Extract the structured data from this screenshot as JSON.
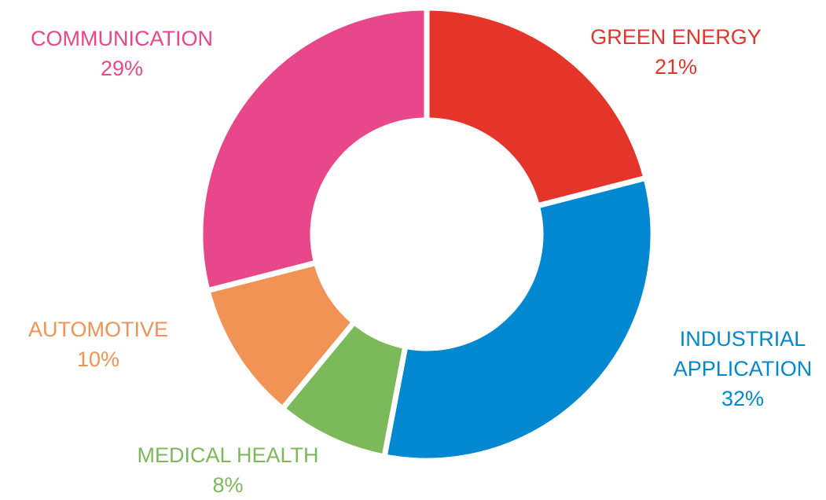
{
  "chart_data": {
    "type": "donut",
    "categories": [
      "GREEN ENERGY",
      "INDUSTRIAL APPLICATION",
      "MEDICAL HEALTH",
      "AUTOMOTIVE",
      "COMMUNICATION"
    ],
    "values": [
      21,
      32,
      8,
      10,
      29
    ],
    "value_labels": [
      "21%",
      "32%",
      "8%",
      "10%",
      "29%"
    ],
    "colors": [
      "#e5352b",
      "#0288d1",
      "#7cb95a",
      "#f09355",
      "#e8488a"
    ]
  }
}
